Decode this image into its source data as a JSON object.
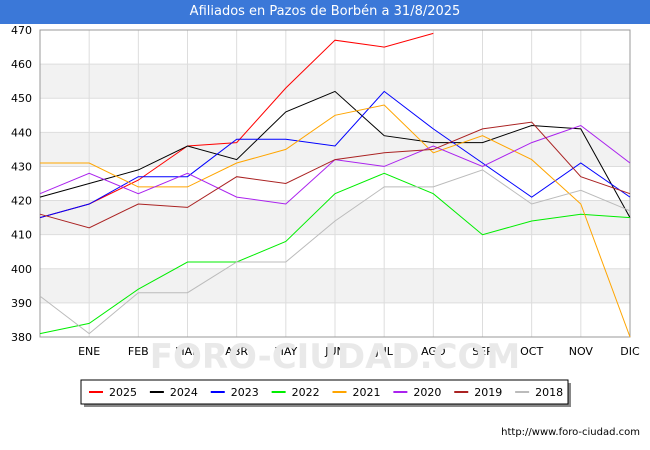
{
  "header": {
    "title": "Afiliados en Pazos de Borbén a 31/8/2025"
  },
  "footer": {
    "url": "http://www.foro-ciudad.com",
    "watermark": "FORO-CIUDAD.COM"
  },
  "chart_data": {
    "type": "line",
    "title": "Afiliados en Pazos de Borbén a 31/8/2025",
    "categories": [
      "",
      "ENE",
      "FEB",
      "MAR",
      "ABR",
      "MAY",
      "JUN",
      "JUL",
      "AGO",
      "SEP",
      "OCT",
      "NOV",
      "DIC"
    ],
    "ylim": [
      380,
      470
    ],
    "yticks": [
      380,
      390,
      400,
      410,
      420,
      430,
      440,
      450,
      460,
      470
    ],
    "grid": true,
    "legend_position": "bottom",
    "series": [
      {
        "name": "2025",
        "color": "#ff0000",
        "values": [
          415,
          419,
          426,
          436,
          437,
          453,
          467,
          465,
          469,
          null,
          null,
          null,
          null
        ]
      },
      {
        "name": "2024",
        "color": "#000000",
        "values": [
          421,
          425,
          429,
          436,
          432,
          446,
          452,
          439,
          437,
          437,
          442,
          441,
          415
        ]
      },
      {
        "name": "2023",
        "color": "#0000ff",
        "values": [
          415,
          419,
          427,
          427,
          438,
          438,
          436,
          452,
          441,
          431,
          421,
          431,
          421
        ]
      },
      {
        "name": "2022",
        "color": "#00ee00",
        "values": [
          381,
          384,
          394,
          402,
          402,
          408,
          422,
          428,
          422,
          410,
          414,
          416,
          415
        ]
      },
      {
        "name": "2021",
        "color": "#ffa500",
        "values": [
          431,
          431,
          424,
          424,
          431,
          435,
          445,
          448,
          434,
          439,
          432,
          419,
          380
        ]
      },
      {
        "name": "2020",
        "color": "#aa22ee",
        "values": [
          422,
          428,
          422,
          428,
          421,
          419,
          432,
          430,
          436,
          430,
          437,
          442,
          431
        ]
      },
      {
        "name": "2019",
        "color": "#aa2222",
        "values": [
          416,
          412,
          419,
          418,
          427,
          425,
          432,
          434,
          435,
          441,
          443,
          427,
          422
        ]
      },
      {
        "name": "2018",
        "color": "#bbbbbb",
        "values": [
          392,
          381,
          393,
          393,
          402,
          402,
          414,
          424,
          424,
          429,
          419,
          423,
          417
        ]
      }
    ]
  }
}
